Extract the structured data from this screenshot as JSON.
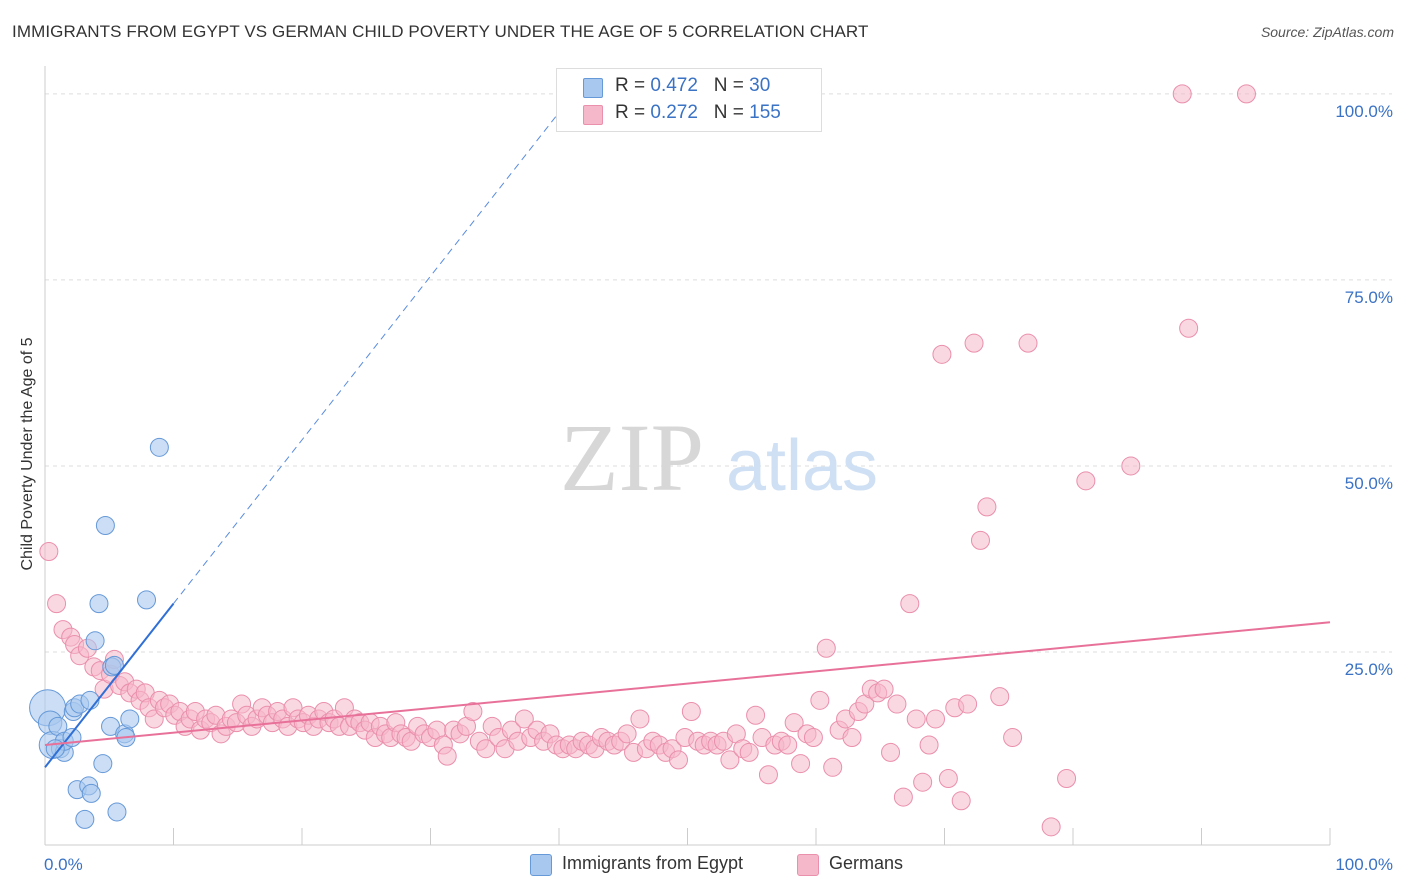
{
  "title": "IMMIGRANTS FROM EGYPT VS GERMAN CHILD POVERTY UNDER THE AGE OF 5 CORRELATION CHART",
  "source": "Source: ZipAtlas.com",
  "watermark": {
    "zip": "ZIP",
    "atlas": "atlas"
  },
  "legend_top": {
    "rows": [
      {
        "r_label": "R = ",
        "r_value": "0.472",
        "n_label": "N = ",
        "n_value": "30",
        "color": "#a9c8ef"
      },
      {
        "r_label": "R = ",
        "r_value": "0.272",
        "n_label": "N = ",
        "n_value": "155",
        "color": "#f5b8ca"
      }
    ]
  },
  "legend_bottom": [
    {
      "label": "Immigrants from Egypt",
      "color": "#a9c8ef"
    },
    {
      "label": "Germans",
      "color": "#f5b8ca"
    }
  ],
  "colors": {
    "egypt_fill": "#a9c8ef",
    "egypt_stroke": "#6699d8",
    "egypt_line": "#2f6fd6",
    "german_fill": "#f5b8ca",
    "german_stroke": "#ea8fac",
    "german_line": "#e8719a",
    "axis_text": "#3a72c4",
    "grid": "#dddddd"
  },
  "chart_data": {
    "type": "scatter",
    "title": "IMMIGRANTS FROM EGYPT VS GERMAN CHILD POVERTY UNDER THE AGE OF 5 CORRELATION CHART",
    "xlabel": "",
    "ylabel": "Child Poverty Under the Age of 5",
    "x_tick_labels": [
      "0.0%",
      "100.0%"
    ],
    "y_tick_labels": [
      "100.0%",
      "75.0%",
      "50.0%",
      "25.0%"
    ],
    "y_tick_values": [
      100,
      75,
      50,
      25
    ],
    "xlim": [
      0,
      100
    ],
    "ylim": [
      0,
      102
    ],
    "series": [
      {
        "name": "Immigrants from Egypt",
        "R": 0.472,
        "N": 30,
        "trend": {
          "x0": 0,
          "y0": 9.5,
          "x1": 10,
          "y1": 31.5,
          "extend_to_x": 40
        },
        "points": [
          [
            0.2,
            17.5,
            2.0
          ],
          [
            0.4,
            15.5,
            1.3
          ],
          [
            0.6,
            12.5,
            1.5
          ],
          [
            1.0,
            15.0,
            1.0
          ],
          [
            1.2,
            12.0,
            1.0
          ],
          [
            1.5,
            11.5,
            1.0
          ],
          [
            1.5,
            13.0,
            1.0
          ],
          [
            2.1,
            13.5,
            1.0
          ],
          [
            2.2,
            17.0,
            1.0
          ],
          [
            2.3,
            17.5,
            1.0
          ],
          [
            2.5,
            6.5,
            1.0
          ],
          [
            2.7,
            18.0,
            1.0
          ],
          [
            3.1,
            2.5,
            1.0
          ],
          [
            3.4,
            7.0,
            1.0
          ],
          [
            3.5,
            18.5,
            1.0
          ],
          [
            3.6,
            6.0,
            1.0
          ],
          [
            3.9,
            26.5,
            1.0
          ],
          [
            4.2,
            31.5,
            1.0
          ],
          [
            4.5,
            10.0,
            1.0
          ],
          [
            4.7,
            42.0,
            1.0
          ],
          [
            5.1,
            15.0,
            1.0
          ],
          [
            5.2,
            23.0,
            1.0
          ],
          [
            5.6,
            3.5,
            1.0
          ],
          [
            6.2,
            14.0,
            1.0
          ],
          [
            6.3,
            13.5,
            1.0
          ],
          [
            6.6,
            16.0,
            1.0
          ],
          [
            7.9,
            32.0,
            1.0
          ],
          [
            8.9,
            52.5,
            1.0
          ],
          [
            0.8,
            12.0,
            1.0
          ],
          [
            5.4,
            23.2,
            1.0
          ]
        ]
      },
      {
        "name": "Germans",
        "R": 0.272,
        "N": 155,
        "trend": {
          "x0": 0,
          "y0": 12.5,
          "x1": 100,
          "y1": 29.0
        },
        "points": [
          [
            0.3,
            38.5
          ],
          [
            0.9,
            31.5
          ],
          [
            1.4,
            28.0
          ],
          [
            2.0,
            27.0
          ],
          [
            2.3,
            26.0
          ],
          [
            2.7,
            24.5
          ],
          [
            3.3,
            25.5
          ],
          [
            3.8,
            23.0
          ],
          [
            4.3,
            22.5
          ],
          [
            4.6,
            20.0
          ],
          [
            5.1,
            22.0
          ],
          [
            5.4,
            24.0
          ],
          [
            5.8,
            20.5
          ],
          [
            6.2,
            21.0
          ],
          [
            6.6,
            19.5
          ],
          [
            7.1,
            20.0
          ],
          [
            7.4,
            18.5
          ],
          [
            7.8,
            19.5
          ],
          [
            8.1,
            17.5
          ],
          [
            8.5,
            16.0
          ],
          [
            8.9,
            18.5
          ],
          [
            9.3,
            17.5
          ],
          [
            9.7,
            18.0
          ],
          [
            10.1,
            16.5
          ],
          [
            10.5,
            17.0
          ],
          [
            10.9,
            15.0
          ],
          [
            11.3,
            16.0
          ],
          [
            11.7,
            17.0
          ],
          [
            12.1,
            14.5
          ],
          [
            12.5,
            16.0
          ],
          [
            12.9,
            15.5
          ],
          [
            13.3,
            16.5
          ],
          [
            13.7,
            14.0
          ],
          [
            14.1,
            15.0
          ],
          [
            14.5,
            16.0
          ],
          [
            14.9,
            15.5
          ],
          [
            15.3,
            18.0
          ],
          [
            15.7,
            16.5
          ],
          [
            16.1,
            15.0
          ],
          [
            16.5,
            16.0
          ],
          [
            16.9,
            17.5
          ],
          [
            17.3,
            16.5
          ],
          [
            17.7,
            15.5
          ],
          [
            18.1,
            17.0
          ],
          [
            18.5,
            16.0
          ],
          [
            18.9,
            15.0
          ],
          [
            19.3,
            17.5
          ],
          [
            19.7,
            16.0
          ],
          [
            20.1,
            15.5
          ],
          [
            20.5,
            16.5
          ],
          [
            20.9,
            15.0
          ],
          [
            21.3,
            16.0
          ],
          [
            21.7,
            17.0
          ],
          [
            22.1,
            15.5
          ],
          [
            22.5,
            16.0
          ],
          [
            22.9,
            15.0
          ],
          [
            23.3,
            17.5
          ],
          [
            23.7,
            15.0
          ],
          [
            24.1,
            16.0
          ],
          [
            24.5,
            15.5
          ],
          [
            24.9,
            14.5
          ],
          [
            25.3,
            15.5
          ],
          [
            25.7,
            13.5
          ],
          [
            26.1,
            15.0
          ],
          [
            26.5,
            14.0
          ],
          [
            26.9,
            13.5
          ],
          [
            27.3,
            15.5
          ],
          [
            27.7,
            14.0
          ],
          [
            28.1,
            13.5
          ],
          [
            28.5,
            13.0
          ],
          [
            29.0,
            15.0
          ],
          [
            29.5,
            14.0
          ],
          [
            30.0,
            13.5
          ],
          [
            30.5,
            14.5
          ],
          [
            31.0,
            12.5
          ],
          [
            31.3,
            11.0
          ],
          [
            31.8,
            14.5
          ],
          [
            32.3,
            14.0
          ],
          [
            32.8,
            15.0
          ],
          [
            33.3,
            17.0
          ],
          [
            33.8,
            13.0
          ],
          [
            34.3,
            12.0
          ],
          [
            34.8,
            15.0
          ],
          [
            35.3,
            13.5
          ],
          [
            35.8,
            12.0
          ],
          [
            36.3,
            14.5
          ],
          [
            36.8,
            13.0
          ],
          [
            37.3,
            16.0
          ],
          [
            37.8,
            13.5
          ],
          [
            38.3,
            14.5
          ],
          [
            38.8,
            13.0
          ],
          [
            39.3,
            14.0
          ],
          [
            39.8,
            12.5
          ],
          [
            40.3,
            12.0
          ],
          [
            40.8,
            12.5
          ],
          [
            41.3,
            12.0
          ],
          [
            41.8,
            13.0
          ],
          [
            42.3,
            12.5
          ],
          [
            42.8,
            12.0
          ],
          [
            43.3,
            13.5
          ],
          [
            43.8,
            13.0
          ],
          [
            44.3,
            12.5
          ],
          [
            44.8,
            13.0
          ],
          [
            45.3,
            14.0
          ],
          [
            45.8,
            11.5
          ],
          [
            46.3,
            16.0
          ],
          [
            46.8,
            12.0
          ],
          [
            47.3,
            13.0
          ],
          [
            47.8,
            12.5
          ],
          [
            48.3,
            11.5
          ],
          [
            48.8,
            12.0
          ],
          [
            49.3,
            10.5
          ],
          [
            49.8,
            13.5
          ],
          [
            50.3,
            17.0
          ],
          [
            50.8,
            13.0
          ],
          [
            51.3,
            12.5
          ],
          [
            51.8,
            13.0
          ],
          [
            52.3,
            12.5
          ],
          [
            52.8,
            13.0
          ],
          [
            53.3,
            10.5
          ],
          [
            53.8,
            14.0
          ],
          [
            54.3,
            12.0
          ],
          [
            54.8,
            11.5
          ],
          [
            55.3,
            16.5
          ],
          [
            55.8,
            13.5
          ],
          [
            56.3,
            8.5
          ],
          [
            56.8,
            12.5
          ],
          [
            57.3,
            13.0
          ],
          [
            57.8,
            12.5
          ],
          [
            58.3,
            15.5
          ],
          [
            58.8,
            10.0
          ],
          [
            59.3,
            14.0
          ],
          [
            59.8,
            13.5
          ],
          [
            60.3,
            18.5
          ],
          [
            60.8,
            25.5
          ],
          [
            61.3,
            9.5
          ],
          [
            61.8,
            14.5
          ],
          [
            62.3,
            16.0
          ],
          [
            62.8,
            13.5
          ],
          [
            63.3,
            17.0
          ],
          [
            63.8,
            18.0
          ],
          [
            64.3,
            20.0
          ],
          [
            64.8,
            19.5
          ],
          [
            65.3,
            20.0
          ],
          [
            65.8,
            11.5
          ],
          [
            66.3,
            18.0
          ],
          [
            66.8,
            5.5
          ],
          [
            67.3,
            31.5
          ],
          [
            67.8,
            16.0
          ],
          [
            68.3,
            7.5
          ],
          [
            68.8,
            12.5
          ],
          [
            69.3,
            16.0
          ],
          [
            69.8,
            65.0
          ],
          [
            70.3,
            8.0
          ],
          [
            70.8,
            17.5
          ],
          [
            71.3,
            5.0
          ],
          [
            71.8,
            18.0
          ],
          [
            72.3,
            66.5
          ],
          [
            72.8,
            40.0
          ],
          [
            73.3,
            44.5
          ],
          [
            74.3,
            19.0
          ],
          [
            75.3,
            13.5
          ],
          [
            76.5,
            66.5
          ],
          [
            78.3,
            1.5
          ],
          [
            79.5,
            8.0
          ],
          [
            81.0,
            48.0
          ],
          [
            84.5,
            50.0
          ],
          [
            88.5,
            100.0
          ],
          [
            89.0,
            68.5
          ],
          [
            93.5,
            100.0
          ]
        ]
      }
    ]
  }
}
